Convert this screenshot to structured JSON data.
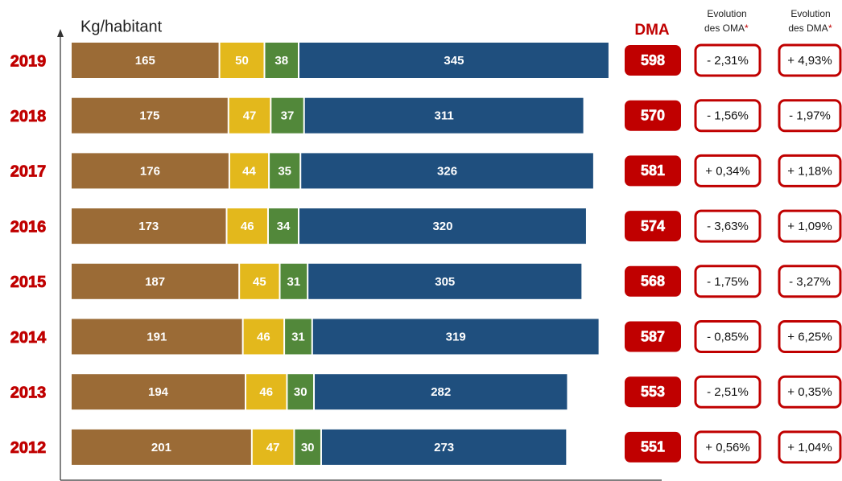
{
  "chart_data": {
    "type": "stacked_bar_horizontal",
    "y_axis_label": "Kg/habitant",
    "categories": [
      "2019",
      "2018",
      "2017",
      "2016",
      "2015",
      "2014",
      "2013",
      "2012"
    ],
    "series": [
      {
        "color": "#9b6b36",
        "values": [
          165,
          175,
          176,
          173,
          187,
          191,
          194,
          201
        ]
      },
      {
        "color": "#e3b81c",
        "values": [
          50,
          47,
          44,
          46,
          45,
          46,
          46,
          47
        ]
      },
      {
        "color": "#52883a",
        "values": [
          38,
          37,
          35,
          34,
          31,
          31,
          30,
          30
        ]
      },
      {
        "color": "#1f4f7e",
        "values": [
          345,
          311,
          326,
          320,
          305,
          319,
          282,
          273
        ]
      }
    ],
    "xlim": [
      0,
      700
    ],
    "dma": {
      "label": "DMA",
      "color": "#c00000",
      "values": [
        598,
        570,
        581,
        574,
        568,
        587,
        553,
        551
      ]
    },
    "oma_evolution": {
      "label": [
        "Evolution",
        "des OMA"
      ],
      "asterisk": "*",
      "values": [
        -2.31,
        -1.56,
        0.34,
        -3.63,
        -1.75,
        -0.85,
        -2.51,
        0.56
      ],
      "value_labels": [
        "- 2,31%",
        "- 1,56%",
        "+ 0,34%",
        "- 3,63%",
        "- 1,75%",
        "- 0,85%",
        "- 2,51%",
        "+ 0,56%"
      ]
    },
    "dma_evolution": {
      "label": [
        "Evolution",
        "des DMA"
      ],
      "asterisk": "*",
      "values": [
        4.93,
        -1.97,
        1.18,
        1.09,
        -3.27,
        6.25,
        0.35,
        1.04
      ],
      "value_labels": [
        "+ 4,93%",
        "- 1,97%",
        "+ 1,18%",
        "+ 1,09%",
        "- 3,27%",
        "+ 6,25%",
        "+ 0,35%",
        "+ 1,04%"
      ]
    }
  }
}
